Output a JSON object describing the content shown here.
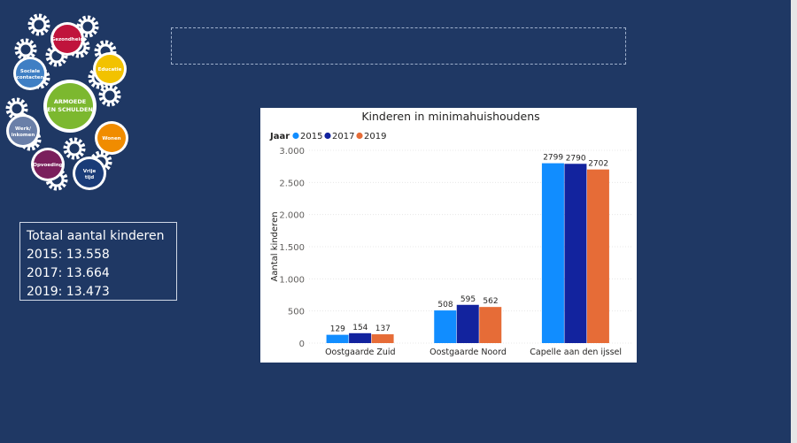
{
  "logo": {
    "center_label": "ARMOEDE EN SCHULDEN",
    "items": [
      {
        "label": "Gezondheid",
        "color": "#c0143c"
      },
      {
        "label": "Educatie",
        "color": "#f2c200"
      },
      {
        "label": "Wonen",
        "color": "#f08c00"
      },
      {
        "label": "Vrije tijd",
        "color": "#1a3c78"
      },
      {
        "label": "Opvoeding",
        "color": "#7a1f5c"
      },
      {
        "label": "Werk/ inkomen",
        "color": "#6a7fa8"
      },
      {
        "label": "Sociale contacten",
        "color": "#3f7fc4"
      }
    ],
    "center_color": "#7cb82f"
  },
  "title_box_text": "",
  "totals": {
    "heading": "Totaal aantal kinderen",
    "lines": [
      "2015: 13.558",
      "2017: 13.664",
      "2019: 13.473"
    ]
  },
  "chart_data": {
    "type": "bar",
    "title": "Kinderen in minimahuishoudens",
    "legend_title": "Jaar",
    "legend_position": "top-left",
    "categories": [
      "Oostgaarde Zuid",
      "Oostgaarde Noord",
      "Capelle aan den ijssel"
    ],
    "series": [
      {
        "name": "2015",
        "color": "#118dff",
        "values": [
          129,
          508,
          2799
        ]
      },
      {
        "name": "2017",
        "color": "#12239e",
        "values": [
          154,
          595,
          2790
        ]
      },
      {
        "name": "2019",
        "color": "#e66c37",
        "values": [
          137,
          562,
          2702
        ]
      }
    ],
    "ylabel": "Aantal kinderen",
    "xlabel": "",
    "ylim": [
      0,
      3000
    ],
    "yticks": [
      0,
      500,
      1000,
      1500,
      2000,
      2500,
      3000
    ],
    "ytick_labels": [
      "0",
      "500",
      "1.000",
      "1.500",
      "2.000",
      "2.500",
      "3.000"
    ],
    "grid": true
  }
}
